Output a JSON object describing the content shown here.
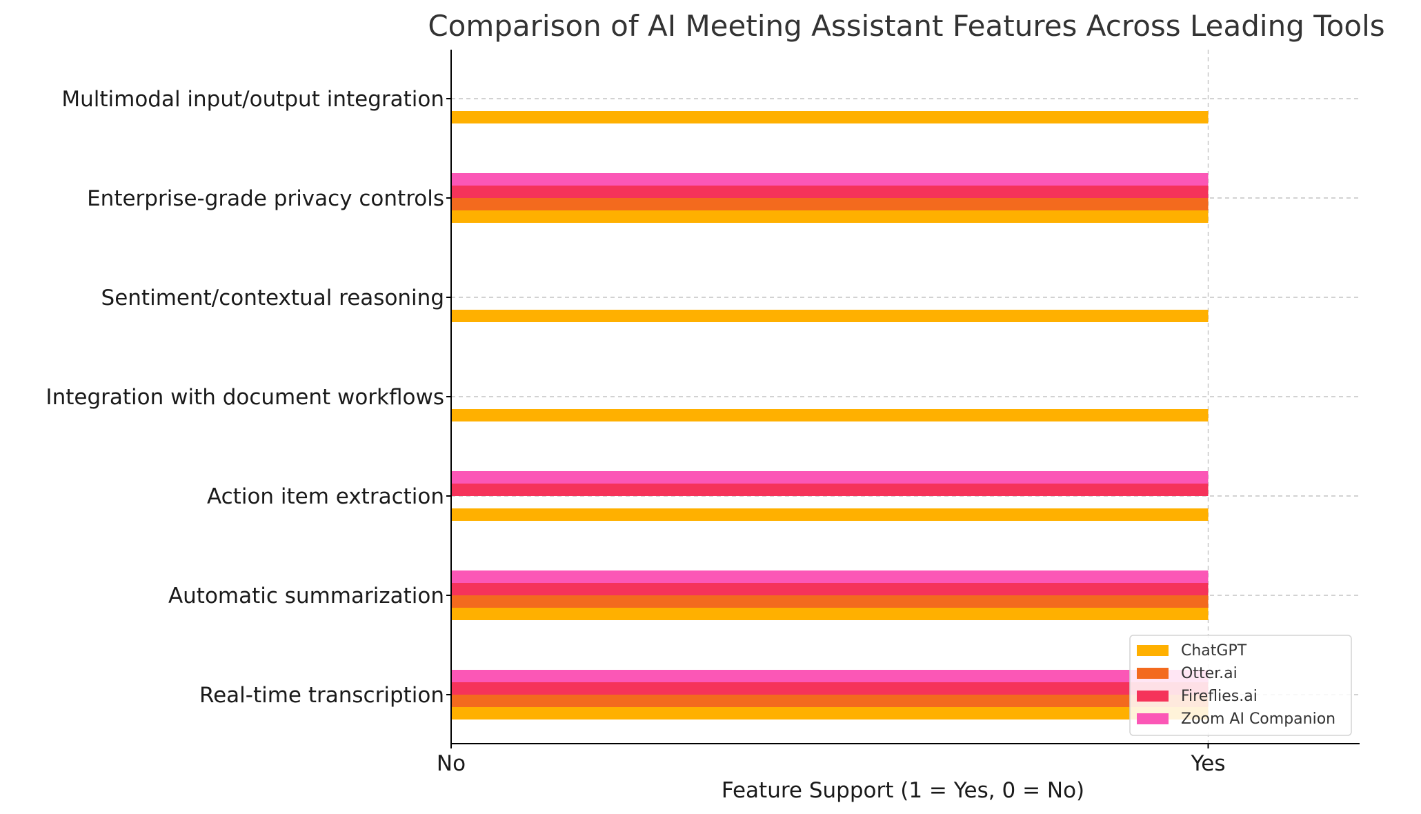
{
  "chart_data": {
    "type": "bar",
    "orientation": "horizontal",
    "title": "Comparison of AI Meeting Assistant Features Across Leading Tools",
    "xlabel": "Feature Support (1 = Yes, 0 = No)",
    "ylabel": "",
    "categories": [
      "Real-time transcription",
      "Automatic summarization",
      "Action item extraction",
      "Integration with document workflows",
      "Sentiment/contextual reasoning",
      "Enterprise-grade privacy controls",
      "Multimodal input/output integration"
    ],
    "series": [
      {
        "name": "ChatGPT",
        "color": "#ffb000",
        "values": [
          1,
          1,
          1,
          1,
          1,
          1,
          1
        ]
      },
      {
        "name": "Otter.ai",
        "color": "#f36a1e",
        "values": [
          1,
          1,
          0,
          0,
          0,
          1,
          0
        ]
      },
      {
        "name": "Fireflies.ai",
        "color": "#f5335a",
        "values": [
          1,
          1,
          1,
          0,
          0,
          1,
          0
        ]
      },
      {
        "name": "Zoom AI Companion",
        "color": "#fb57b6",
        "values": [
          1,
          1,
          1,
          0,
          0,
          1,
          0
        ]
      }
    ],
    "xlim": [
      0,
      1.2
    ],
    "xticks": [
      {
        "value": 0,
        "label": "No"
      },
      {
        "value": 1,
        "label": "Yes"
      }
    ],
    "grid": true,
    "legend_position": "bottom-right"
  }
}
